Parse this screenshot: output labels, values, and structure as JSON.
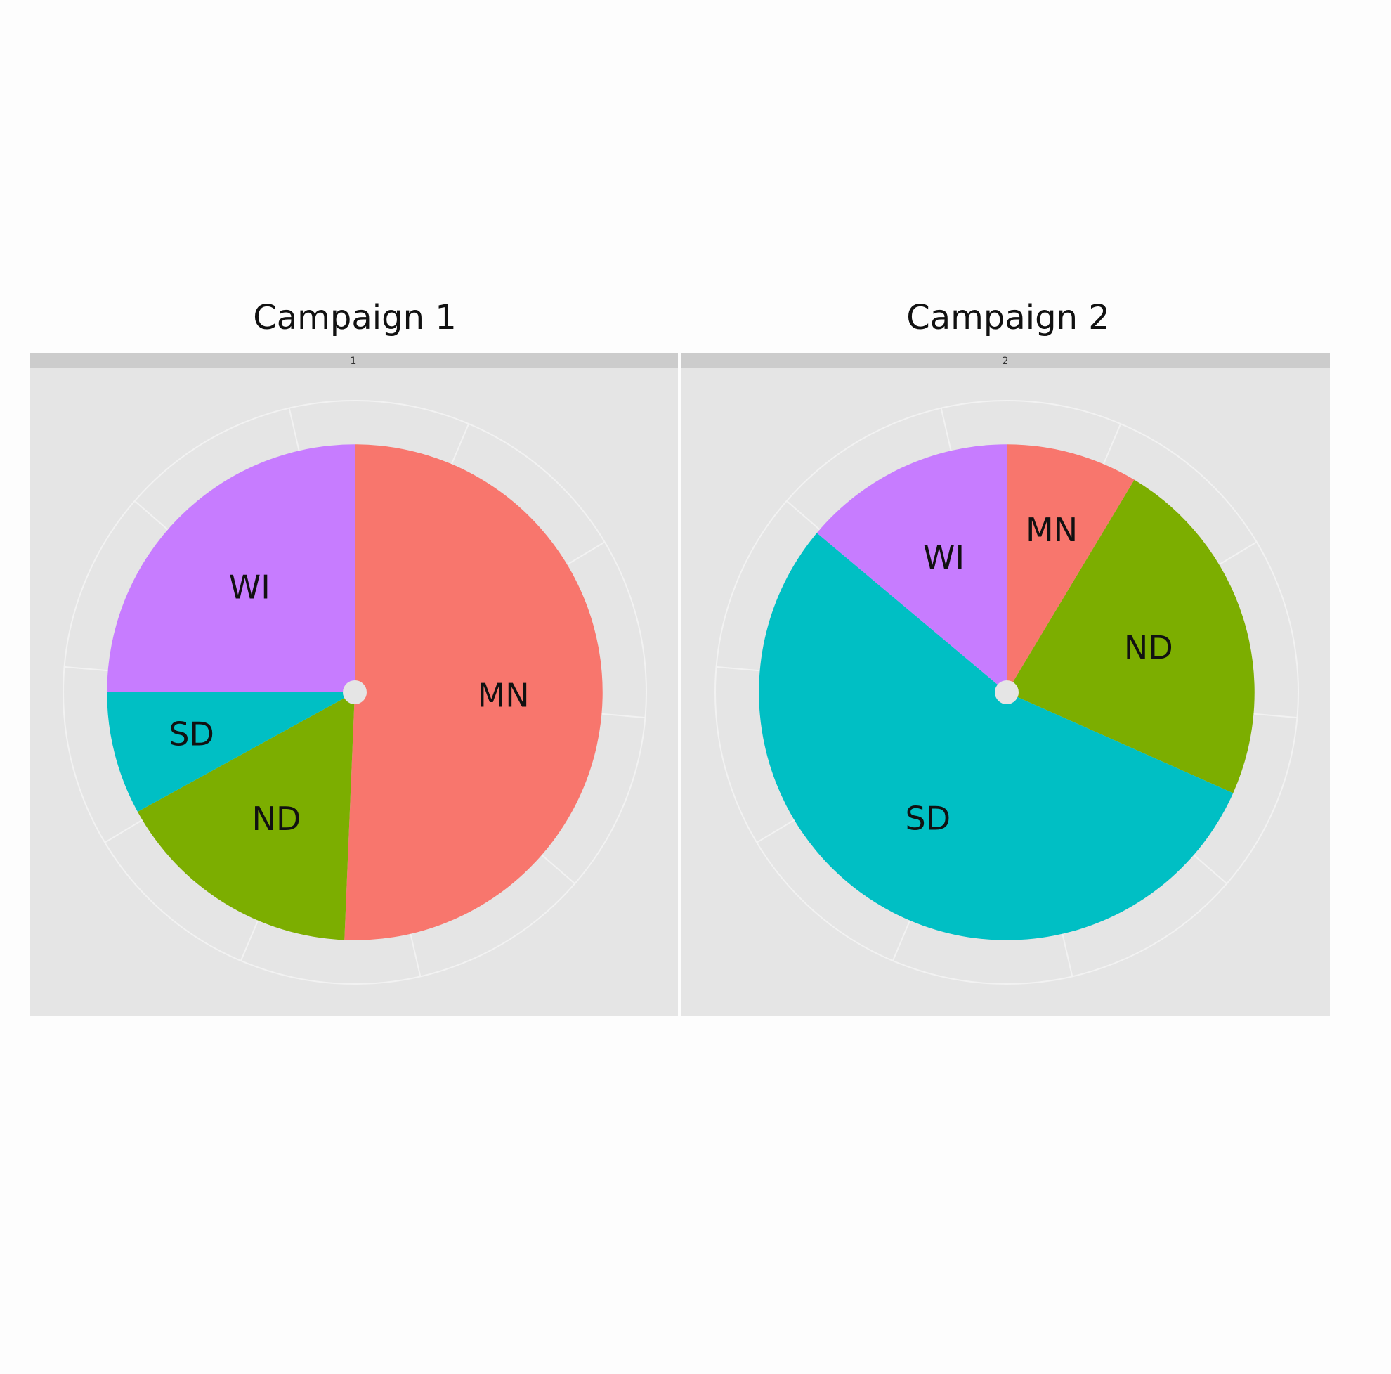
{
  "chart_data": [
    {
      "type": "pie",
      "title": "Campaign 1",
      "facet_label": "1",
      "style": "coxcomb",
      "grid": true,
      "categories": [
        "MN",
        "ND",
        "SD",
        "WI"
      ],
      "angles_deg": [
        152,
        49,
        24,
        75
      ],
      "radius_fraction": [
        0.85,
        0.85,
        0.85,
        0.85
      ],
      "colors": [
        "#F8766D",
        "#7CAE00",
        "#00BFC4",
        "#C77CFF"
      ]
    },
    {
      "type": "pie",
      "title": "Campaign 2",
      "facet_label": "2",
      "style": "coxcomb",
      "grid": true,
      "categories": [
        "MN",
        "ND",
        "SD",
        "WI"
      ],
      "angles_deg": [
        31,
        83,
        196,
        50
      ],
      "radius_fraction": [
        0.85,
        0.85,
        0.85,
        0.85
      ],
      "colors": [
        "#F8766D",
        "#7CAE00",
        "#00BFC4",
        "#C77CFF"
      ]
    }
  ]
}
